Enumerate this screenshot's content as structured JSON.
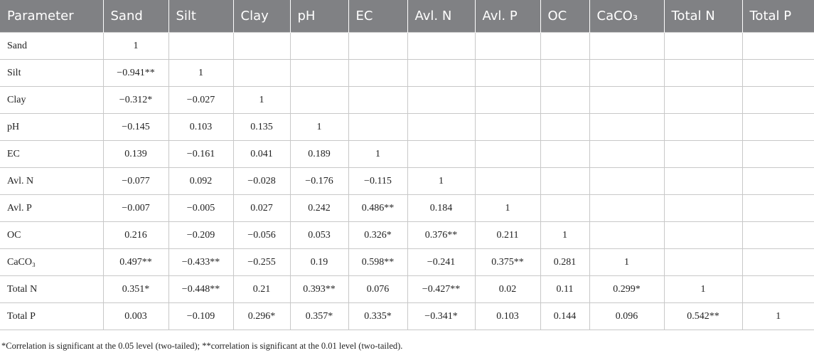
{
  "table": {
    "header": [
      "Parameter",
      "Sand",
      "Silt",
      "Clay",
      "pH",
      "EC",
      "Avl. N",
      "Avl. P",
      "OC",
      "CaCO₃",
      "Total N",
      "Total P"
    ],
    "rows": [
      [
        "Sand",
        "1"
      ],
      [
        "Silt",
        "−0.941**",
        "1"
      ],
      [
        "Clay",
        "−0.312*",
        "−0.027",
        "1"
      ],
      [
        "pH",
        "−0.145",
        "0.103",
        "0.135",
        "1"
      ],
      [
        "EC",
        "0.139",
        "−0.161",
        "0.041",
        "0.189",
        "1"
      ],
      [
        "Avl. N",
        "−0.077",
        "0.092",
        "−0.028",
        "−0.176",
        "−0.115",
        "1"
      ],
      [
        "Avl. P",
        "−0.007",
        "−0.005",
        "0.027",
        "0.242",
        "0.486**",
        "0.184",
        "1"
      ],
      [
        "OC",
        "0.216",
        "−0.209",
        "−0.056",
        "0.053",
        "0.326*",
        "0.376**",
        "0.211",
        "1"
      ],
      [
        "CaCO₃",
        "0.497**",
        "−0.433**",
        "−0.255",
        "0.19",
        "0.598**",
        "−0.241",
        "0.375**",
        "0.281",
        "1"
      ],
      [
        "Total N",
        "0.351*",
        "−0.448**",
        "0.21",
        "0.393**",
        "0.076",
        "−0.427**",
        "0.02",
        "0.11",
        "0.299*",
        "1"
      ],
      [
        "Total P",
        "0.003",
        "−0.109",
        "0.296*",
        "0.357*",
        "0.335*",
        "−0.341*",
        "0.103",
        "0.144",
        "0.096",
        "0.542**",
        "1"
      ]
    ],
    "footnote": "*Correlation is significant at the 0.05 level (two-tailed); **correlation is significant at the 0.01 level (two-tailed)."
  }
}
